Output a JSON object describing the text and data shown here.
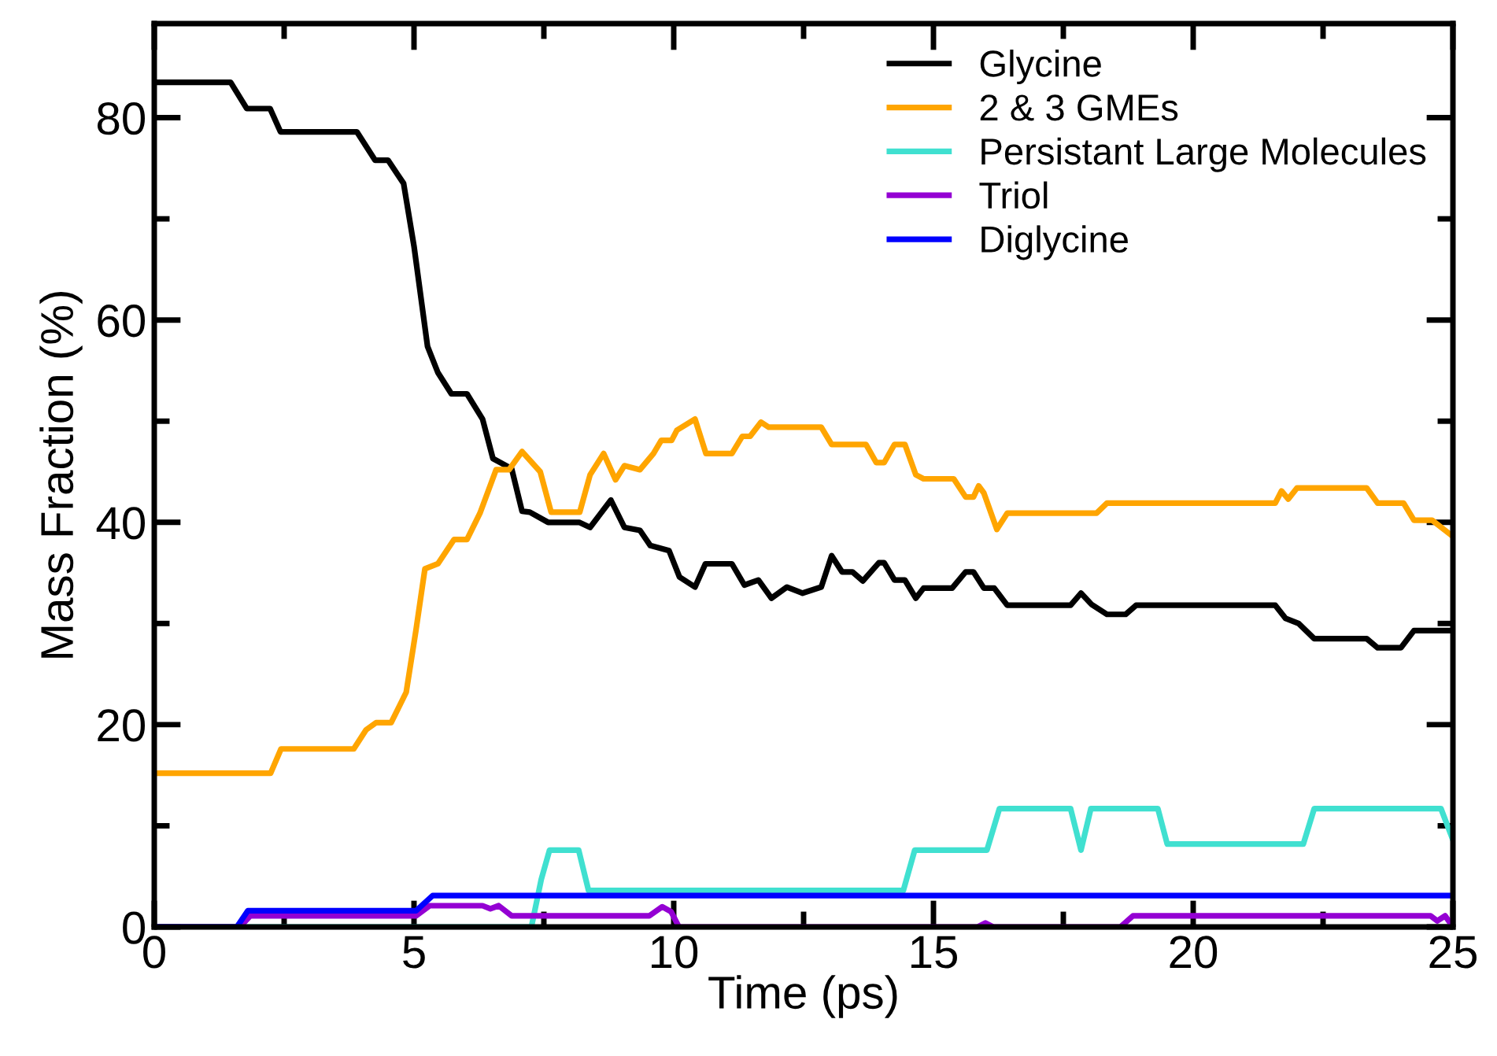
{
  "chart_data": {
    "type": "line",
    "xlabel": "Time (ps)",
    "ylabel": "Mass Fraction (%)",
    "xlim": [
      0,
      25
    ],
    "ylim": [
      0,
      89.3
    ],
    "xticks": [
      0,
      {
        "value": 2.5,
        "label": null
      },
      5,
      {
        "value": 7.5,
        "label": null
      },
      10,
      {
        "value": 12.5,
        "label": null
      },
      15,
      {
        "value": 17.5,
        "label": null
      },
      20,
      {
        "value": 22.5,
        "label": null
      },
      25
    ],
    "yticks": [
      0,
      {
        "value": 10,
        "label": null
      },
      20,
      {
        "value": 30,
        "label": null
      },
      40,
      {
        "value": 50,
        "label": null
      },
      60,
      {
        "value": 70,
        "label": null
      },
      80
    ],
    "grid": false,
    "legend": "top right",
    "marker": "none",
    "line_style": "solid",
    "series": [
      {
        "name": "Glycine",
        "color": "#000000",
        "x": [
          0,
          1.47,
          1.78,
          2.23,
          2.43,
          3.9,
          4.25,
          4.5,
          4.8,
          5.0,
          5.26,
          5.46,
          5.72,
          6.02,
          6.32,
          6.52,
          6.88,
          7.08,
          7.23,
          7.58,
          8.18,
          8.39,
          8.79,
          9.05,
          9.35,
          9.55,
          9.91,
          10.11,
          10.41,
          10.61,
          11.12,
          11.36,
          11.63,
          11.88,
          12.18,
          12.48,
          12.84,
          13.04,
          13.24,
          13.44,
          13.64,
          13.95,
          14.05,
          14.25,
          14.45,
          14.66,
          14.81,
          15.36,
          15.62,
          15.77,
          15.97,
          16.17,
          16.42,
          17.64,
          17.84,
          18.04,
          18.34,
          18.7,
          18.9,
          21.58,
          21.78,
          22.03,
          22.33,
          23.34,
          23.55,
          24.0,
          24.25,
          25
        ],
        "values": [
          83.5,
          83.5,
          80.9,
          80.9,
          78.6,
          78.6,
          75.8,
          75.8,
          73.5,
          67.3,
          57.4,
          54.8,
          52.7,
          52.7,
          50.2,
          46.3,
          45.3,
          41.1,
          41.0,
          40.0,
          40.0,
          39.5,
          42.2,
          39.5,
          39.2,
          37.7,
          37.2,
          34.6,
          33.6,
          35.9,
          35.9,
          33.8,
          34.3,
          32.5,
          33.6,
          33.0,
          33.6,
          36.7,
          35.1,
          35.1,
          34.2,
          36.0,
          36.0,
          34.3,
          34.3,
          32.5,
          33.5,
          33.5,
          35.1,
          35.1,
          33.5,
          33.5,
          31.8,
          31.8,
          33.0,
          31.9,
          30.9,
          30.9,
          31.8,
          31.8,
          30.5,
          30.0,
          28.5,
          28.5,
          27.6,
          27.6,
          29.3,
          29.3
        ]
      },
      {
        "name": "2 & 3 GMEs",
        "color": "#ffa500",
        "x": [
          0,
          2.24,
          2.44,
          3.84,
          4.08,
          4.27,
          4.56,
          4.85,
          5.04,
          5.21,
          5.46,
          5.77,
          6.02,
          6.27,
          6.58,
          6.83,
          7.08,
          7.43,
          7.64,
          8.19,
          8.39,
          8.65,
          8.88,
          9.05,
          9.35,
          9.61,
          9.76,
          9.96,
          10.06,
          10.41,
          10.62,
          11.12,
          11.32,
          11.47,
          11.68,
          11.83,
          12.84,
          13.04,
          13.7,
          13.9,
          14.05,
          14.25,
          14.45,
          14.66,
          14.81,
          15.39,
          15.62,
          15.77,
          15.87,
          15.97,
          16.22,
          16.42,
          18.14,
          18.34,
          21.58,
          21.7,
          21.83,
          22.0,
          23.34,
          23.55,
          24.05,
          24.25,
          24.6,
          25
        ],
        "values": [
          15.2,
          15.2,
          17.6,
          17.6,
          19.5,
          20.2,
          20.2,
          23.2,
          29.4,
          35.4,
          35.9,
          38.3,
          38.3,
          40.9,
          45.2,
          45.2,
          47.0,
          45.0,
          41.0,
          41.0,
          44.7,
          46.8,
          44.2,
          45.6,
          45.2,
          46.8,
          48.1,
          48.1,
          49.1,
          50.2,
          46.8,
          46.8,
          48.5,
          48.5,
          49.9,
          49.4,
          49.4,
          47.7,
          47.7,
          45.9,
          45.9,
          47.7,
          47.7,
          44.7,
          44.3,
          44.3,
          42.5,
          42.5,
          43.6,
          42.9,
          39.3,
          40.9,
          40.9,
          41.9,
          41.9,
          43.1,
          42.3,
          43.4,
          43.4,
          41.9,
          41.9,
          40.2,
          40.2,
          38.6
        ]
      },
      {
        "name": "Persistant Large Molecules",
        "color": "#40e0d0",
        "x": [
          0,
          7.26,
          7.45,
          7.61,
          8.17,
          8.36,
          14.42,
          14.64,
          16.03,
          16.27,
          17.64,
          17.84,
          18.03,
          19.32,
          19.5,
          22.12,
          22.33,
          24.77,
          25
        ],
        "values": [
          0,
          0,
          4.7,
          7.6,
          7.6,
          3.6,
          3.6,
          7.6,
          7.6,
          11.7,
          11.7,
          7.6,
          11.7,
          11.7,
          8.2,
          8.2,
          11.7,
          11.7,
          8.6
        ]
      },
      {
        "name": "Triol",
        "color": "#9400d3",
        "x": [
          0,
          1.65,
          1.85,
          5.04,
          5.3,
          6.32,
          6.47,
          6.63,
          6.88,
          9.53,
          9.78,
          9.95,
          10.1,
          15.85,
          16.0,
          16.15,
          18.6,
          18.84,
          24.57,
          24.7,
          24.85,
          25
        ],
        "values": [
          0,
          0,
          1.1,
          1.1,
          2.1,
          2.1,
          1.8,
          2.1,
          1.1,
          1.1,
          2.0,
          1.5,
          0,
          0,
          0.4,
          0,
          0,
          1.1,
          1.1,
          0.6,
          1.1,
          0
        ]
      },
      {
        "name": "Diglycine",
        "color": "#0000ff",
        "x": [
          0,
          1.59,
          1.8,
          5.04,
          5.36,
          25
        ],
        "values": [
          0,
          0,
          1.6,
          1.6,
          3.1,
          3.1
        ]
      }
    ]
  }
}
